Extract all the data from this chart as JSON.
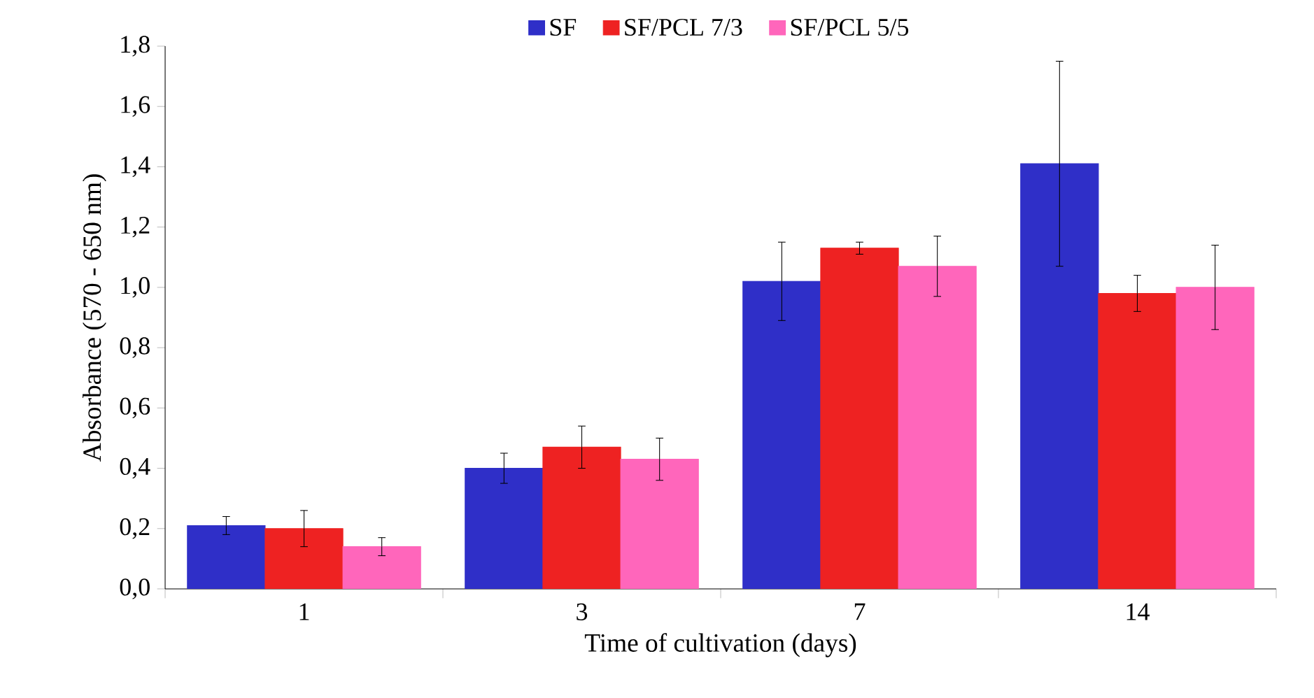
{
  "chart_data": {
    "type": "bar",
    "xlabel": "Time of cultivation (days)",
    "ylabel": "Absorbance (570 - 650 nm)",
    "categories": [
      "1",
      "3",
      "7",
      "14"
    ],
    "series": [
      {
        "name": "SF",
        "color": "#2f2fc8",
        "values": [
          0.21,
          0.4,
          1.02,
          1.41
        ],
        "errors": [
          0.03,
          0.05,
          0.13,
          0.34
        ]
      },
      {
        "name": "SF/PCL 7/3",
        "color": "#ee2222",
        "values": [
          0.2,
          0.47,
          1.13,
          0.98
        ],
        "errors": [
          0.06,
          0.07,
          0.02,
          0.06
        ]
      },
      {
        "name": "SF/PCL 5/5",
        "color": "#ff66bb",
        "values": [
          0.14,
          0.43,
          1.07,
          1.0
        ],
        "errors": [
          0.03,
          0.07,
          0.1,
          0.14
        ]
      }
    ],
    "ylim": [
      0,
      1.8
    ],
    "yticks": [
      {
        "value": 0,
        "label": "0,0"
      },
      {
        "value": 0.2,
        "label": "0,2"
      },
      {
        "value": 0.4,
        "label": "0,4"
      },
      {
        "value": 0.6,
        "label": "0,6"
      },
      {
        "value": 0.8,
        "label": "0,8"
      },
      {
        "value": 1.0,
        "label": "1,0"
      },
      {
        "value": 1.2,
        "label": "1,2"
      },
      {
        "value": 1.4,
        "label": "1,4"
      },
      {
        "value": 1.6,
        "label": "1,6"
      },
      {
        "value": 1.8,
        "label": "1,8"
      }
    ],
    "grid": false,
    "legend": "top"
  }
}
